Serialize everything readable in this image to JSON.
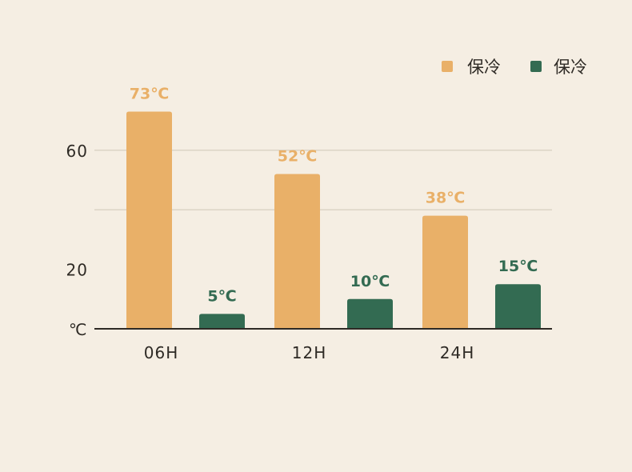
{
  "chart_data": {
    "type": "bar",
    "categories": [
      "06H",
      "12H",
      "24H"
    ],
    "series": [
      {
        "name": "保冷",
        "color": "#e9b068",
        "values": [
          73,
          52,
          38
        ],
        "labels": [
          "73℃",
          "52℃",
          "38℃"
        ]
      },
      {
        "name": "保冷",
        "color": "#336b52",
        "values": [
          5,
          10,
          15
        ],
        "labels": [
          "5℃",
          "10℃",
          "15℃"
        ]
      }
    ],
    "y_unit": "℃",
    "yticks": [
      "60",
      "20"
    ],
    "ytick_values": [
      60,
      20
    ],
    "gridlines": [
      40,
      60
    ],
    "ylim": [
      0,
      80
    ],
    "legend": "top-right",
    "colors": {
      "background": "#f5eee3",
      "grid": "#d3cbbd",
      "axis": "#2e2a25"
    }
  }
}
